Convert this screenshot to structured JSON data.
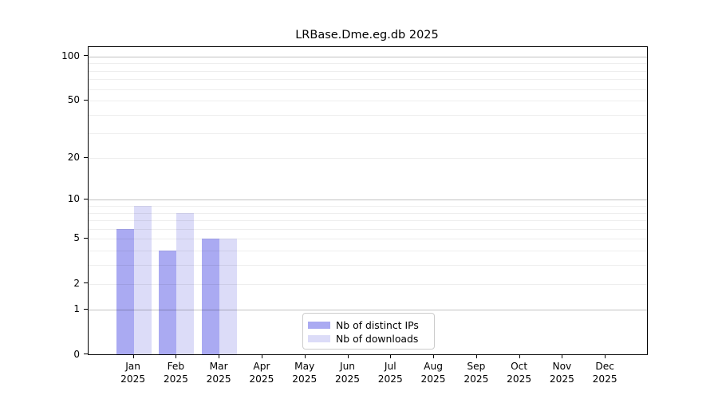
{
  "chart_data": {
    "type": "bar",
    "title": "LRBase.Dme.eg.db 2025",
    "categories": [
      "Jan",
      "Feb",
      "Mar",
      "Apr",
      "May",
      "Jun",
      "Jul",
      "Aug",
      "Sep",
      "Oct",
      "Nov",
      "Dec"
    ],
    "year_label": "2025",
    "series": [
      {
        "name": "Nb of distinct IPs",
        "color": "#aaaaf2",
        "values": [
          6,
          4,
          5,
          0,
          0,
          0,
          0,
          0,
          0,
          0,
          0,
          0
        ]
      },
      {
        "name": "Nb of downloads",
        "color": "#dcdcf8",
        "values": [
          9,
          8,
          5,
          0,
          0,
          0,
          0,
          0,
          0,
          0,
          0,
          0
        ]
      }
    ],
    "y_axis": {
      "scale": "log10(1+v)",
      "tick_labels": [
        0,
        1,
        2,
        5,
        10,
        20,
        50,
        100
      ],
      "range": [
        0,
        116
      ]
    },
    "grid": {
      "orientation": "horizontal",
      "major_values": [
        1,
        10,
        100
      ],
      "minor_values": [
        2,
        3,
        4,
        5,
        6,
        7,
        8,
        9,
        20,
        30,
        40,
        50,
        60,
        70,
        80,
        90
      ]
    },
    "legend": {
      "position": "bottom-center"
    }
  }
}
